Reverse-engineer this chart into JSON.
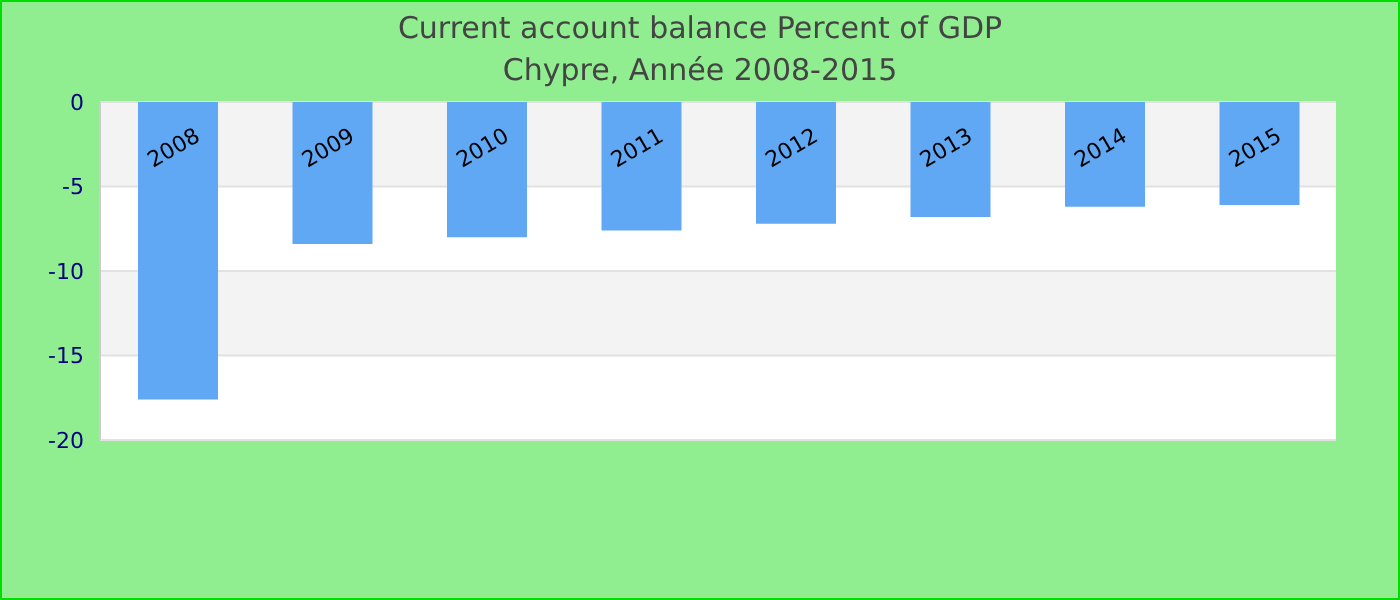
{
  "chart_data": {
    "type": "bar",
    "title": "Current account balance  Percent of GDP",
    "subtitle": "Chypre, Année 2008-2015",
    "categories": [
      "2008",
      "2009",
      "2010",
      "2011",
      "2012",
      "2013",
      "2014",
      "2015"
    ],
    "values": [
      -17.6,
      -8.4,
      -8.0,
      -7.6,
      -7.2,
      -6.8,
      -6.2,
      -6.1
    ],
    "color": "#60a8f4",
    "ylim": [
      -20,
      0
    ],
    "yticks": [
      -20,
      -15,
      -10,
      -5,
      0
    ],
    "grid": "y"
  }
}
